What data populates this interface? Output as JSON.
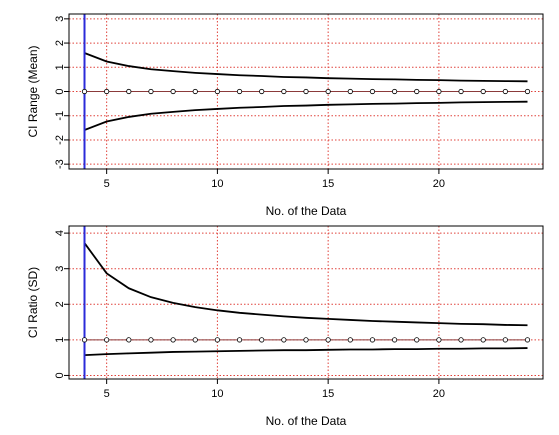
{
  "chart_data": [
    {
      "type": "line",
      "xlabel": "No. of the Data",
      "ylabel": "CI Range (Mean)",
      "xlim": [
        3.3,
        24.7
      ],
      "ylim": [
        -3.2,
        3.2
      ],
      "xticks": [
        5,
        10,
        15,
        20
      ],
      "xtick_labels": [
        "5",
        "10",
        "15",
        "20"
      ],
      "yticks": [
        -3,
        -2,
        -1,
        0,
        1,
        2,
        3
      ],
      "ytick_labels": [
        "-3",
        "-2",
        "-1",
        "0",
        "1",
        "2",
        "3"
      ],
      "grid": true,
      "vline_x": 4,
      "x": [
        4,
        5,
        6,
        7,
        8,
        9,
        10,
        11,
        12,
        13,
        14,
        15,
        16,
        17,
        18,
        19,
        20,
        21,
        22,
        23,
        24
      ],
      "upper": [
        1.59,
        1.24,
        1.05,
        0.92,
        0.84,
        0.77,
        0.72,
        0.67,
        0.64,
        0.6,
        0.58,
        0.55,
        0.53,
        0.51,
        0.5,
        0.48,
        0.47,
        0.45,
        0.44,
        0.43,
        0.42
      ],
      "lower": [
        -1.59,
        -1.24,
        -1.05,
        -0.92,
        -0.84,
        -0.77,
        -0.72,
        -0.67,
        -0.64,
        -0.6,
        -0.58,
        -0.55,
        -0.53,
        -0.51,
        -0.5,
        -0.48,
        -0.47,
        -0.45,
        -0.44,
        -0.43,
        -0.42
      ],
      "center": [
        0,
        0,
        0,
        0,
        0,
        0,
        0,
        0,
        0,
        0,
        0,
        0,
        0,
        0,
        0,
        0,
        0,
        0,
        0,
        0,
        0
      ]
    },
    {
      "type": "line",
      "xlabel": "No. of the Data",
      "ylabel": "CI Ratio (SD)",
      "xlim": [
        3.3,
        24.7
      ],
      "ylim": [
        -0.1,
        4.2
      ],
      "xticks": [
        5,
        10,
        15,
        20
      ],
      "xtick_labels": [
        "5",
        "10",
        "15",
        "20"
      ],
      "yticks": [
        0,
        1,
        2,
        3,
        4
      ],
      "ytick_labels": [
        "0",
        "1",
        "2",
        "3",
        "4"
      ],
      "grid": true,
      "vline_x": 4,
      "x": [
        4,
        5,
        6,
        7,
        8,
        9,
        10,
        11,
        12,
        13,
        14,
        15,
        16,
        17,
        18,
        19,
        20,
        21,
        22,
        23,
        24
      ],
      "upper": [
        3.72,
        2.87,
        2.45,
        2.2,
        2.04,
        1.92,
        1.83,
        1.76,
        1.71,
        1.66,
        1.62,
        1.59,
        1.56,
        1.53,
        1.51,
        1.49,
        1.47,
        1.45,
        1.44,
        1.42,
        1.41
      ],
      "lower": [
        0.57,
        0.6,
        0.62,
        0.64,
        0.66,
        0.67,
        0.68,
        0.69,
        0.7,
        0.71,
        0.71,
        0.72,
        0.73,
        0.73,
        0.74,
        0.74,
        0.75,
        0.75,
        0.76,
        0.76,
        0.77
      ],
      "center": [
        1,
        1,
        1,
        1,
        1,
        1,
        1,
        1,
        1,
        1,
        1,
        1,
        1,
        1,
        1,
        1,
        1,
        1,
        1,
        1,
        1
      ]
    }
  ],
  "colors": {
    "grid": "#e0413a",
    "vline": "#2b2bd9",
    "curve": "#000000",
    "center_line": "#8b3a3a",
    "points": "#000000"
  }
}
